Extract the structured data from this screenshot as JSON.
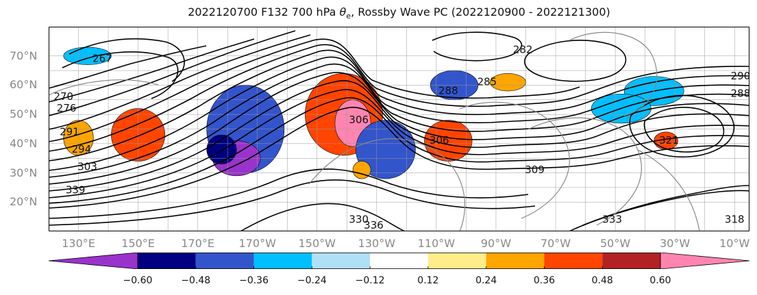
{
  "title": "2022120700 F132 700 hPa θe, Rossby Wave PC (2022120900 - 2022121300)",
  "title_parts": {
    "prefix": "2022120700 F132 700 hPa ",
    "symbol": "θ",
    "subscript": "e",
    "suffix": ", Rossby Wave PC (2022120900 - 2022121300)"
  },
  "map": {
    "projection": "PlateCarree",
    "lon_range": [
      120,
      355
    ],
    "lat_range": [
      10,
      80
    ],
    "grid": true,
    "lat_ticks": [
      {
        "value": 70,
        "label": "70°N"
      },
      {
        "value": 60,
        "label": "60°N"
      },
      {
        "value": 50,
        "label": "50°N"
      },
      {
        "value": 40,
        "label": "40°N"
      },
      {
        "value": 30,
        "label": "30°N"
      },
      {
        "value": 20,
        "label": "20°N"
      }
    ],
    "lon_ticks": [
      {
        "value": 130,
        "label": "130°E"
      },
      {
        "value": 150,
        "label": "150°E"
      },
      {
        "value": 170,
        "label": "170°E"
      },
      {
        "value": 190,
        "label": "170°W"
      },
      {
        "value": 210,
        "label": "150°W"
      },
      {
        "value": 230,
        "label": "130°W"
      },
      {
        "value": 250,
        "label": "110°W"
      },
      {
        "value": 270,
        "label": "90°W"
      },
      {
        "value": 290,
        "label": "70°W"
      },
      {
        "value": 310,
        "label": "50°W"
      },
      {
        "value": 330,
        "label": "30°W"
      },
      {
        "value": 350,
        "label": "10°W"
      }
    ],
    "contour_labels": [
      {
        "lon": 138,
        "lat": 69,
        "text": "267"
      },
      {
        "lon": 125,
        "lat": 56,
        "text": "270"
      },
      {
        "lon": 126,
        "lat": 52,
        "text": "276"
      },
      {
        "lon": 127,
        "lat": 44,
        "text": "291"
      },
      {
        "lon": 131,
        "lat": 38,
        "text": "294"
      },
      {
        "lon": 133,
        "lat": 32,
        "text": "303"
      },
      {
        "lon": 129,
        "lat": 24,
        "text": "339"
      },
      {
        "lon": 224,
        "lat": 48,
        "text": "306"
      },
      {
        "lon": 254,
        "lat": 58,
        "text": "288"
      },
      {
        "lon": 267,
        "lat": 61,
        "text": "285"
      },
      {
        "lon": 279,
        "lat": 72,
        "text": "282"
      },
      {
        "lon": 251,
        "lat": 41,
        "text": "306"
      },
      {
        "lon": 283,
        "lat": 31,
        "text": "309"
      },
      {
        "lon": 328,
        "lat": 41,
        "text": "321"
      },
      {
        "lon": 224,
        "lat": 14,
        "text": "330"
      },
      {
        "lon": 229,
        "lat": 12,
        "text": "336"
      },
      {
        "lon": 309,
        "lat": 14,
        "text": "333"
      },
      {
        "lon": 350,
        "lat": 14,
        "text": "318"
      },
      {
        "lon": 352,
        "lat": 63,
        "text": "290"
      },
      {
        "lon": 352,
        "lat": 57,
        "text": "288"
      }
    ]
  },
  "colorbar": {
    "levels": [
      -0.72,
      -0.6,
      -0.48,
      -0.36,
      -0.24,
      -0.12,
      0.12,
      0.24,
      0.36,
      0.48,
      0.6,
      0.72
    ],
    "colors": [
      "#9933cc",
      "#000080",
      "#3355cc",
      "#00bfff",
      "#b0e0f5",
      "#ffffff",
      "#ffed8a",
      "#ffa500",
      "#ff4500",
      "#b22222",
      "#ff85b0"
    ],
    "extend": "both",
    "ticks": [
      {
        "value": -0.6,
        "label": "−0.60"
      },
      {
        "value": -0.48,
        "label": "−0.48"
      },
      {
        "value": -0.36,
        "label": "−0.36"
      },
      {
        "value": -0.24,
        "label": "−0.24"
      },
      {
        "value": -0.12,
        "label": "−0.12"
      },
      {
        "value": 0.12,
        "label": "0.12"
      },
      {
        "value": 0.24,
        "label": "0.24"
      },
      {
        "value": 0.36,
        "label": "0.36"
      },
      {
        "value": 0.48,
        "label": "0.48"
      },
      {
        "value": 0.6,
        "label": "0.60"
      }
    ]
  },
  "anomalies": [
    {
      "lon": 150,
      "lat": 43,
      "rx": 9,
      "ry": 9,
      "value": 0.4
    },
    {
      "lon": 130,
      "lat": 42,
      "rx": 5,
      "ry": 6,
      "value": 0.3
    },
    {
      "lon": 186,
      "lat": 45,
      "rx": 13,
      "ry": 15,
      "value": -0.4
    },
    {
      "lon": 183,
      "lat": 35,
      "rx": 8,
      "ry": 6,
      "value": -0.65
    },
    {
      "lon": 178,
      "lat": 38,
      "rx": 5,
      "ry": 5,
      "value": -0.55
    },
    {
      "lon": 219,
      "lat": 50,
      "rx": 13,
      "ry": 14,
      "value": 0.45
    },
    {
      "lon": 222,
      "lat": 47,
      "rx": 6,
      "ry": 8,
      "value": 0.65
    },
    {
      "lon": 233,
      "lat": 38,
      "rx": 10,
      "ry": 10,
      "value": -0.45
    },
    {
      "lon": 254,
      "lat": 41,
      "rx": 8,
      "ry": 7,
      "value": 0.4
    },
    {
      "lon": 256,
      "lat": 60,
      "rx": 8,
      "ry": 5,
      "value": -0.4
    },
    {
      "lon": 274,
      "lat": 61,
      "rx": 6,
      "ry": 3,
      "value": 0.35
    },
    {
      "lon": 323,
      "lat": 58,
      "rx": 10,
      "ry": 5,
      "value": -0.35
    },
    {
      "lon": 327,
      "lat": 41,
      "rx": 4,
      "ry": 3,
      "value": 0.45
    },
    {
      "lon": 312,
      "lat": 52,
      "rx": 10,
      "ry": 5,
      "value": -0.25
    },
    {
      "lon": 133,
      "lat": 70,
      "rx": 8,
      "ry": 3,
      "value": -0.25
    },
    {
      "lon": 225,
      "lat": 31,
      "rx": 3,
      "ry": 3,
      "value": 0.3
    }
  ]
}
